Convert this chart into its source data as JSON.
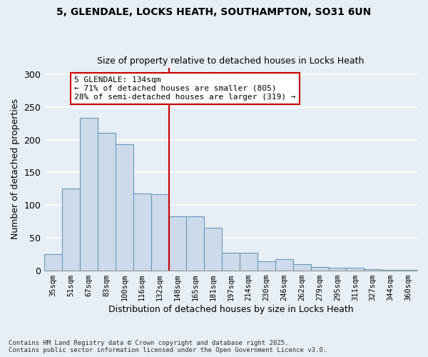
{
  "title_line1": "5, GLENDALE, LOCKS HEATH, SOUTHAMPTON, SO31 6UN",
  "title_line2": "Size of property relative to detached houses in Locks Heath",
  "xlabel": "Distribution of detached houses by size in Locks Heath",
  "ylabel": "Number of detached properties",
  "bar_color": "#ccdaea",
  "bar_edge_color": "#6699bb",
  "background_color": "#e8eef5",
  "grid_color": "#ffffff",
  "categories": [
    "35sqm",
    "51sqm",
    "67sqm",
    "83sqm",
    "100sqm",
    "116sqm",
    "132sqm",
    "148sqm",
    "165sqm",
    "181sqm",
    "197sqm",
    "214sqm",
    "230sqm",
    "246sqm",
    "262sqm",
    "279sqm",
    "295sqm",
    "311sqm",
    "327sqm",
    "344sqm",
    "360sqm"
  ],
  "values": [
    25,
    125,
    233,
    210,
    193,
    118,
    117,
    83,
    83,
    65,
    27,
    27,
    14,
    17,
    10,
    6,
    4,
    4,
    2,
    1,
    1
  ],
  "ylim": [
    0,
    310
  ],
  "yticks": [
    0,
    50,
    100,
    150,
    200,
    250,
    300
  ],
  "vline_color": "#cc0000",
  "annotation_edge_color": "#cc0000",
  "footnote1": "Contains HM Land Registry data © Crown copyright and database right 2025.",
  "footnote2": "Contains public sector information licensed under the Open Government Licence v3.0."
}
